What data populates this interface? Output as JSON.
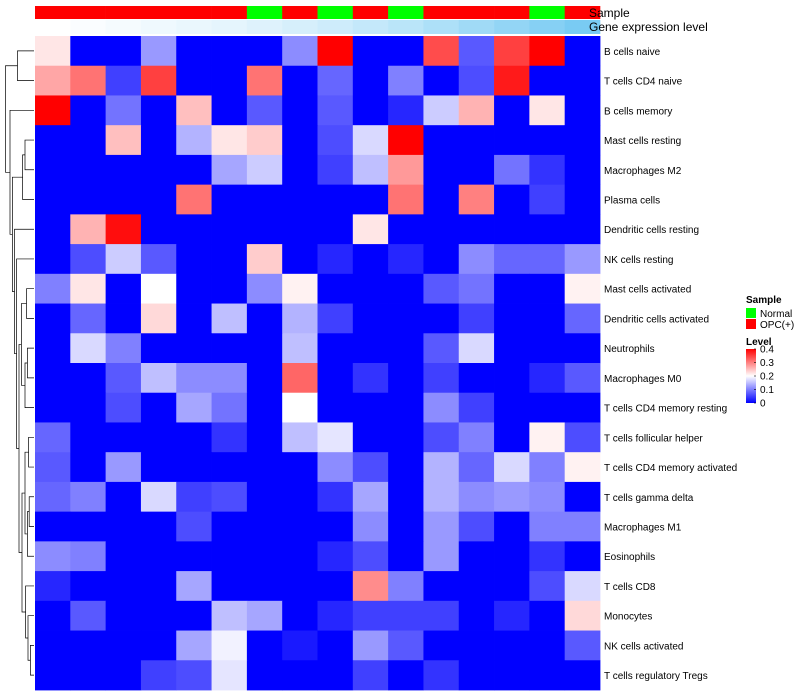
{
  "chart_data": {
    "type": "heatmap",
    "title": "",
    "annotation_tracks": [
      {
        "name": "Sample",
        "values": [
          "OPC(+)",
          "OPC(+)",
          "OPC(+)",
          "OPC(+)",
          "OPC(+)",
          "OPC(+)",
          "Normal",
          "OPC(+)",
          "Normal",
          "OPC(+)",
          "Normal",
          "OPC(+)",
          "OPC(+)",
          "OPC(+)",
          "Normal",
          "OPC(+)"
        ]
      },
      {
        "name": "Gene expression level",
        "values": [
          0.0,
          0.03,
          0.06,
          0.1,
          0.13,
          0.16,
          0.2,
          0.25,
          0.3,
          0.36,
          0.42,
          0.5,
          0.58,
          0.66,
          0.74,
          0.82
        ]
      }
    ],
    "rows": [
      "B cells naive",
      "T cells CD4 naive",
      "B cells memory",
      "Mast cells resting",
      "Macrophages M2",
      "Plasma cells",
      "Dendritic cells resting",
      "NK cells resting",
      "Mast cells activated",
      "Dendritic cells activated",
      "Neutrophils",
      "Macrophages M0",
      "T cells CD4 memory resting",
      "T cells follicular helper",
      "T cells CD4 memory activated",
      "T cells gamma delta",
      "Macrophages M1",
      "Eosinophils",
      "T cells CD8",
      "Monocytes",
      "NK cells activated",
      "T cells regulatory  Tregs"
    ],
    "n_columns": 16,
    "values": [
      [
        0.22,
        0.0,
        0.0,
        0.12,
        0.0,
        0.0,
        0.0,
        0.11,
        0.4,
        0.0,
        0.0,
        0.34,
        0.07,
        0.35,
        0.4,
        0.0
      ],
      [
        0.27,
        0.31,
        0.05,
        0.35,
        0.0,
        0.0,
        0.31,
        0.0,
        0.08,
        0.0,
        0.1,
        0.0,
        0.06,
        0.38,
        0.0,
        0.0
      ],
      [
        0.4,
        0.0,
        0.09,
        0.0,
        0.25,
        0.0,
        0.07,
        0.0,
        0.07,
        0.0,
        0.03,
        0.16,
        0.26,
        0.0,
        0.22,
        0.0
      ],
      [
        0.0,
        0.0,
        0.25,
        0.0,
        0.14,
        0.22,
        0.24,
        0.0,
        0.06,
        0.17,
        0.4,
        0.0,
        0.0,
        0.0,
        0.0,
        0.0
      ],
      [
        0.0,
        0.0,
        0.0,
        0.0,
        0.0,
        0.13,
        0.16,
        0.0,
        0.05,
        0.15,
        0.28,
        0.0,
        0.0,
        0.09,
        0.04,
        0.0
      ],
      [
        0.0,
        0.0,
        0.0,
        0.0,
        0.31,
        0.0,
        0.0,
        0.0,
        0.0,
        0.0,
        0.31,
        0.0,
        0.3,
        0.0,
        0.05,
        0.0
      ],
      [
        0.0,
        0.26,
        0.39,
        0.0,
        0.0,
        0.0,
        0.0,
        0.0,
        0.0,
        0.22,
        0.0,
        0.0,
        0.0,
        0.0,
        0.0,
        0.0
      ],
      [
        0.0,
        0.06,
        0.16,
        0.07,
        0.0,
        0.0,
        0.24,
        0.0,
        0.03,
        0.0,
        0.03,
        0.0,
        0.11,
        0.08,
        0.08,
        0.12
      ],
      [
        0.1,
        0.22,
        0.0,
        0.2,
        0.0,
        0.0,
        0.11,
        0.21,
        0.0,
        0.0,
        0.0,
        0.07,
        0.09,
        0.0,
        0.0,
        0.21
      ],
      [
        0.0,
        0.08,
        0.0,
        0.23,
        0.0,
        0.15,
        0.0,
        0.14,
        0.05,
        0.0,
        0.0,
        0.0,
        0.05,
        0.0,
        0.0,
        0.08
      ],
      [
        0.0,
        0.17,
        0.1,
        0.0,
        0.0,
        0.0,
        0.0,
        0.15,
        0.0,
        0.0,
        0.0,
        0.07,
        0.17,
        0.0,
        0.0,
        0.0
      ],
      [
        0.0,
        0.0,
        0.07,
        0.15,
        0.11,
        0.11,
        0.0,
        0.32,
        0.0,
        0.04,
        0.0,
        0.05,
        0.0,
        0.0,
        0.03,
        0.07
      ],
      [
        0.0,
        0.0,
        0.06,
        0.0,
        0.13,
        0.09,
        0.0,
        0.2,
        0.0,
        0.0,
        0.0,
        0.11,
        0.05,
        0.0,
        0.0,
        0.0
      ],
      [
        0.08,
        0.0,
        0.0,
        0.0,
        0.0,
        0.04,
        0.0,
        0.15,
        0.18,
        0.0,
        0.0,
        0.06,
        0.1,
        0.0,
        0.21,
        0.06
      ],
      [
        0.07,
        0.0,
        0.12,
        0.0,
        0.0,
        0.0,
        0.0,
        0.0,
        0.11,
        0.06,
        0.0,
        0.14,
        0.08,
        0.17,
        0.1,
        0.21
      ],
      [
        0.08,
        0.1,
        0.0,
        0.17,
        0.05,
        0.06,
        0.0,
        0.0,
        0.04,
        0.13,
        0.0,
        0.14,
        0.11,
        0.12,
        0.11,
        0.0
      ],
      [
        0.0,
        0.0,
        0.0,
        0.0,
        0.06,
        0.0,
        0.0,
        0.0,
        0.0,
        0.11,
        0.0,
        0.12,
        0.06,
        0.0,
        0.1,
        0.1
      ],
      [
        0.11,
        0.1,
        0.0,
        0.0,
        0.0,
        0.0,
        0.0,
        0.0,
        0.03,
        0.06,
        0.0,
        0.12,
        0.0,
        0.0,
        0.04,
        0.0
      ],
      [
        0.03,
        0.0,
        0.0,
        0.0,
        0.13,
        0.0,
        0.0,
        0.0,
        0.0,
        0.29,
        0.1,
        0.0,
        0.0,
        0.0,
        0.06,
        0.17
      ],
      [
        0.0,
        0.07,
        0.0,
        0.0,
        0.0,
        0.15,
        0.13,
        0.0,
        0.03,
        0.05,
        0.05,
        0.05,
        0.0,
        0.03,
        0.0,
        0.23
      ],
      [
        0.0,
        0.0,
        0.0,
        0.0,
        0.13,
        0.19,
        0.0,
        0.02,
        0.0,
        0.12,
        0.07,
        0.0,
        0.0,
        0.0,
        0.0,
        0.07
      ],
      [
        0.0,
        0.0,
        0.0,
        0.05,
        0.06,
        0.18,
        0.0,
        0.0,
        0.0,
        0.05,
        0.0,
        0.04,
        0.0,
        0.0,
        0.0,
        0.0
      ]
    ],
    "color_scale": {
      "low": "#0000FF",
      "mid": "#FFFFFF",
      "high": "#FF0000",
      "domain": [
        0,
        0.4
      ],
      "midpoint": 0.2
    },
    "legend": {
      "sample": {
        "title": "Sample",
        "items": [
          {
            "label": "Normal",
            "color": "#00FF00"
          },
          {
            "label": "OPC(+)",
            "color": "#FF0000"
          }
        ]
      },
      "level": {
        "title": "Level",
        "ticks": [
          0.4,
          0.3,
          0.2,
          0.1,
          0
        ],
        "tick_labels": [
          "0.4",
          "0.3",
          "0.2",
          "0.1",
          "0"
        ]
      }
    },
    "gene_track_colors": {
      "low": "#FFFFFF",
      "high": "#5BC0F0"
    },
    "row_dendrogram": "left",
    "legend_position": "right"
  }
}
